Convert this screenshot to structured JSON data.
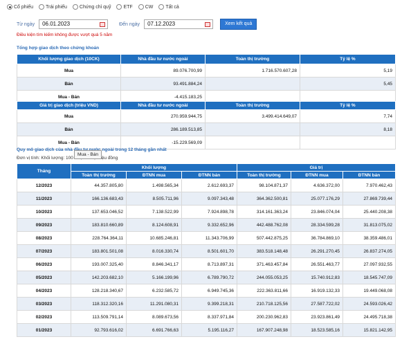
{
  "radios": [
    {
      "label": "Cổ phiếu",
      "checked": true
    },
    {
      "label": "Trái phiếu",
      "checked": false
    },
    {
      "label": "Chứng chỉ quỹ",
      "checked": false
    },
    {
      "label": "ETF",
      "checked": false
    },
    {
      "label": "CW",
      "checked": false
    },
    {
      "label": "Tất cả",
      "checked": false
    }
  ],
  "filter": {
    "from_label": "Từ ngày",
    "from_value": "06.01.2023",
    "to_label": "Đến ngày",
    "to_value": "07.12.2023",
    "button": "Xem kết quả",
    "warning": "Điều kiện tìm kiếm không được vượt quá 5 năm"
  },
  "summary": {
    "title": "Tổng hợp giao dịch theo chứng khoán",
    "volume_table": {
      "headers": [
        "Khối lượng giao dịch (10CK)",
        "Nhà đầu tư nước ngoài",
        "Toàn thị trường",
        "Tỷ lệ %"
      ],
      "rows": [
        [
          "Mua",
          "89.076.700,99",
          "1.716.570.607,28",
          "5,19"
        ],
        [
          "Bán",
          "93.491.884,24",
          "",
          "5,45"
        ],
        [
          "Mua - Bán",
          "-4.415.183,25",
          "",
          ""
        ]
      ]
    },
    "value_table": {
      "headers": [
        "Giá trị giao dịch (triệu VND)",
        "Nhà đầu tư nước ngoài",
        "Toàn thị trường",
        "Tỷ lệ %"
      ],
      "rows": [
        [
          "Mua",
          "270.959.944,75",
          "3.499.414.649,07",
          "7,74"
        ],
        [
          "Bán",
          "286.189.513,85",
          "",
          "8,18"
        ],
        [
          "Mua - Bán",
          "-15.229.569,09",
          "",
          ""
        ]
      ]
    }
  },
  "monthly": {
    "title": "Quy mô giao dịch của nhà đầu tư nước ngoài trong 12 tháng gần nhất",
    "unit": "Đơn vị tính: Khối lượng: 100 CK; Giá trị: triệu đồng",
    "tooltip": "Mua - Bán",
    "group_headers": [
      "Tháng",
      "Khối lượng",
      "Giá trị"
    ],
    "sub_headers": [
      "Toàn thị trường",
      "ĐTNN mua",
      "ĐTNN bán",
      "Toàn thị trường",
      "ĐTNN mua",
      "ĐTNN bán"
    ],
    "rows": [
      [
        "12/2023",
        "44.357.805,80",
        "1.498.565,34",
        "2.612.693,37",
        "98.104.871,37",
        "4.636.372,00",
        "7.970.462,43"
      ],
      [
        "11/2023",
        "166.136.683,43",
        "8.505.711,96",
        "9.097.343,48",
        "364.362.500,81",
        "25.077.176,29",
        "27.869.739,44"
      ],
      [
        "10/2023",
        "137.653.046,52",
        "7.138.522,99",
        "7.924.898,78",
        "314.161.363,24",
        "23.846.074,04",
        "25.440.208,38"
      ],
      [
        "09/2023",
        "183.810.660,89",
        "8.124.608,91",
        "9.332.652,96",
        "442.488.762,08",
        "28.334.599,28",
        "31.813.075,02"
      ],
      [
        "08/2023",
        "228.764.364,11",
        "10.685.246,81",
        "11.343.706,99",
        "507.442.875,25",
        "36.784.869,10",
        "38.359.486,01"
      ],
      [
        "07/2023",
        "183.801.501,08",
        "8.016.330,74",
        "8.501.601,70",
        "383.518.148,48",
        "26.291.270,45",
        "26.837.274,05"
      ],
      [
        "06/2023",
        "193.007.325,40",
        "8.846.341,17",
        "8.713.897,31",
        "371.463.457,84",
        "26.551.463,77",
        "27.097.932,55"
      ],
      [
        "05/2023",
        "142.203.682,10",
        "5.166.199,96",
        "6.789.790,72",
        "244.055.053,25",
        "15.740.912,83",
        "18.545.747,09"
      ],
      [
        "04/2023",
        "128.218.340,67",
        "6.232.585,72",
        "6.949.745,36",
        "222.363.811,66",
        "16.919.132,33",
        "19.449.068,08"
      ],
      [
        "03/2023",
        "118.312.320,16",
        "11.291.080,31",
        "9.399.218,31",
        "210.718.125,56",
        "27.587.722,02",
        "24.593.026,42"
      ],
      [
        "02/2023",
        "113.509.791,14",
        "8.089.673,56",
        "8.337.971,84",
        "200.230.962,83",
        "23.923.861,49",
        "24.495.718,38"
      ],
      [
        "01/2023",
        "92.793.616,02",
        "6.691.766,63",
        "5.195.116,27",
        "167.907.248,98",
        "18.523.585,16",
        "15.821.142,95"
      ]
    ]
  }
}
